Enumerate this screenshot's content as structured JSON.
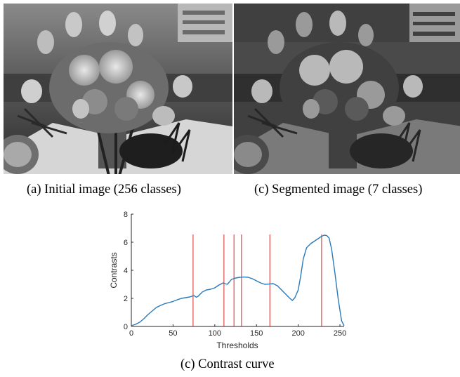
{
  "captions": {
    "initial": "(a) Initial image (256 classes)",
    "segmented": "(c) Segmented image (7 classes)",
    "curve": "(c) Contrast curve"
  },
  "colors": {
    "curve": "#2a7ab9",
    "thresholds": "#d62728",
    "axis": "#262626"
  },
  "chart_data": {
    "type": "line",
    "title": "",
    "xlabel": "Thresholds",
    "ylabel": "Contrasts",
    "xlim": [
      0,
      255
    ],
    "ylim": [
      0,
      8
    ],
    "xticks": [
      0,
      50,
      100,
      150,
      200,
      250
    ],
    "yticks": [
      0,
      2,
      4,
      6,
      8
    ],
    "grid": false,
    "series": [
      {
        "x": [
          0,
          5,
          10,
          15,
          20,
          25,
          30,
          35,
          40,
          45,
          50,
          55,
          60,
          65,
          70,
          75,
          78,
          80,
          85,
          90,
          95,
          100,
          105,
          110,
          112,
          115,
          118,
          120,
          125,
          130,
          135,
          140,
          145,
          150,
          155,
          160,
          165,
          170,
          175,
          180,
          185,
          190,
          193,
          196,
          200,
          203,
          206,
          210,
          215,
          220,
          225,
          228,
          231,
          234,
          237,
          240,
          244,
          248,
          252,
          255
        ],
        "y": [
          0.05,
          0.15,
          0.3,
          0.55,
          0.85,
          1.1,
          1.35,
          1.5,
          1.62,
          1.7,
          1.78,
          1.9,
          2.0,
          2.05,
          2.1,
          2.2,
          2.08,
          2.15,
          2.45,
          2.6,
          2.65,
          2.75,
          2.95,
          3.1,
          3.05,
          3.0,
          3.2,
          3.35,
          3.45,
          3.5,
          3.52,
          3.5,
          3.4,
          3.25,
          3.1,
          3.0,
          3.02,
          3.05,
          2.9,
          2.6,
          2.3,
          2.0,
          1.85,
          2.05,
          2.6,
          3.6,
          4.8,
          5.6,
          5.9,
          6.1,
          6.3,
          6.42,
          6.5,
          6.48,
          6.3,
          5.5,
          3.8,
          1.9,
          0.4,
          0.05
        ]
      }
    ],
    "threshold_lines": [
      74,
      111,
      123,
      132,
      166,
      228
    ]
  }
}
